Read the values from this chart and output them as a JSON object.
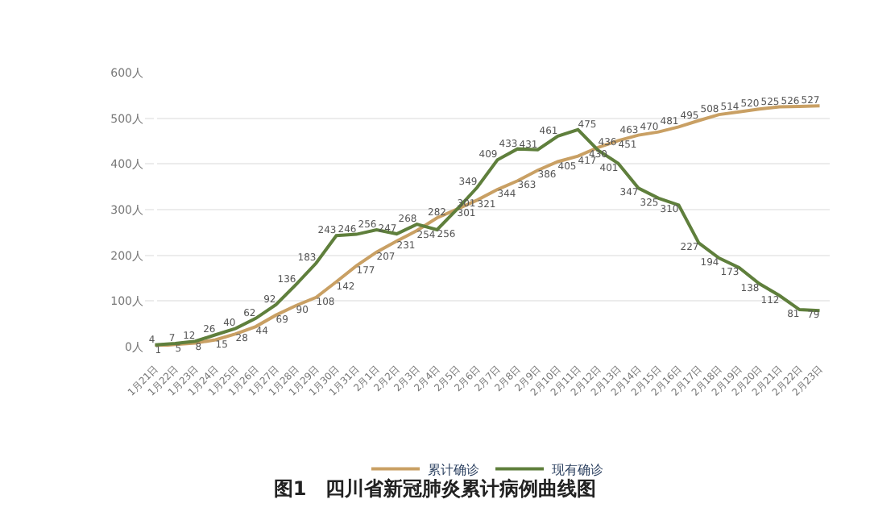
{
  "chart_data": {
    "type": "line",
    "title": "图1　四川省新冠肺炎累计病例曲线图",
    "categories": [
      "1月21日",
      "1月22日",
      "1月23日",
      "1月24日",
      "1月25日",
      "1月26日",
      "1月27日",
      "1月28日",
      "1月29日",
      "1月30日",
      "1月31日",
      "2月1日",
      "2月2日",
      "2月3日",
      "2月4日",
      "2月5日",
      "2月6日",
      "2月7日",
      "2月8日",
      "2月9日",
      "2月10日",
      "2月11日",
      "2月12日",
      "2月13日",
      "2月14日",
      "2月15日",
      "2月16日",
      "2月17日",
      "2月18日",
      "2月19日",
      "2月20日",
      "2月21日",
      "2月22日",
      "2月23日"
    ],
    "series": [
      {
        "name": "累计确诊",
        "color": "#c9a064",
        "values": [
          1,
          5,
          8,
          15,
          28,
          44,
          69,
          90,
          108,
          142,
          177,
          207,
          231,
          254,
          282,
          301,
          321,
          344,
          363,
          386,
          405,
          417,
          436,
          451,
          463,
          470,
          481,
          495,
          508,
          514,
          520,
          525,
          526,
          527
        ]
      },
      {
        "name": "现有确诊",
        "color": "#5f7f3c",
        "values": [
          4,
          7,
          12,
          26,
          40,
          62,
          92,
          136,
          183,
          243,
          246,
          256,
          247,
          268,
          256,
          301,
          349,
          409,
          433,
          431,
          461,
          475,
          430,
          401,
          347,
          325,
          310,
          227,
          194,
          173,
          138,
          112,
          81,
          79
        ]
      }
    ],
    "ylim": [
      0,
      600
    ],
    "yticks": [
      {
        "value": 0,
        "label": "0人"
      },
      {
        "value": 100,
        "label": "100人"
      },
      {
        "value": 200,
        "label": "200人"
      },
      {
        "value": 300,
        "label": "300人"
      },
      {
        "value": 400,
        "label": "400人"
      },
      {
        "value": 500,
        "label": "500人"
      },
      {
        "value": 600,
        "label": "600人"
      }
    ],
    "grid": "y",
    "legend": "bottom",
    "data_labels": true,
    "marker": "none",
    "line_style": "solid"
  }
}
